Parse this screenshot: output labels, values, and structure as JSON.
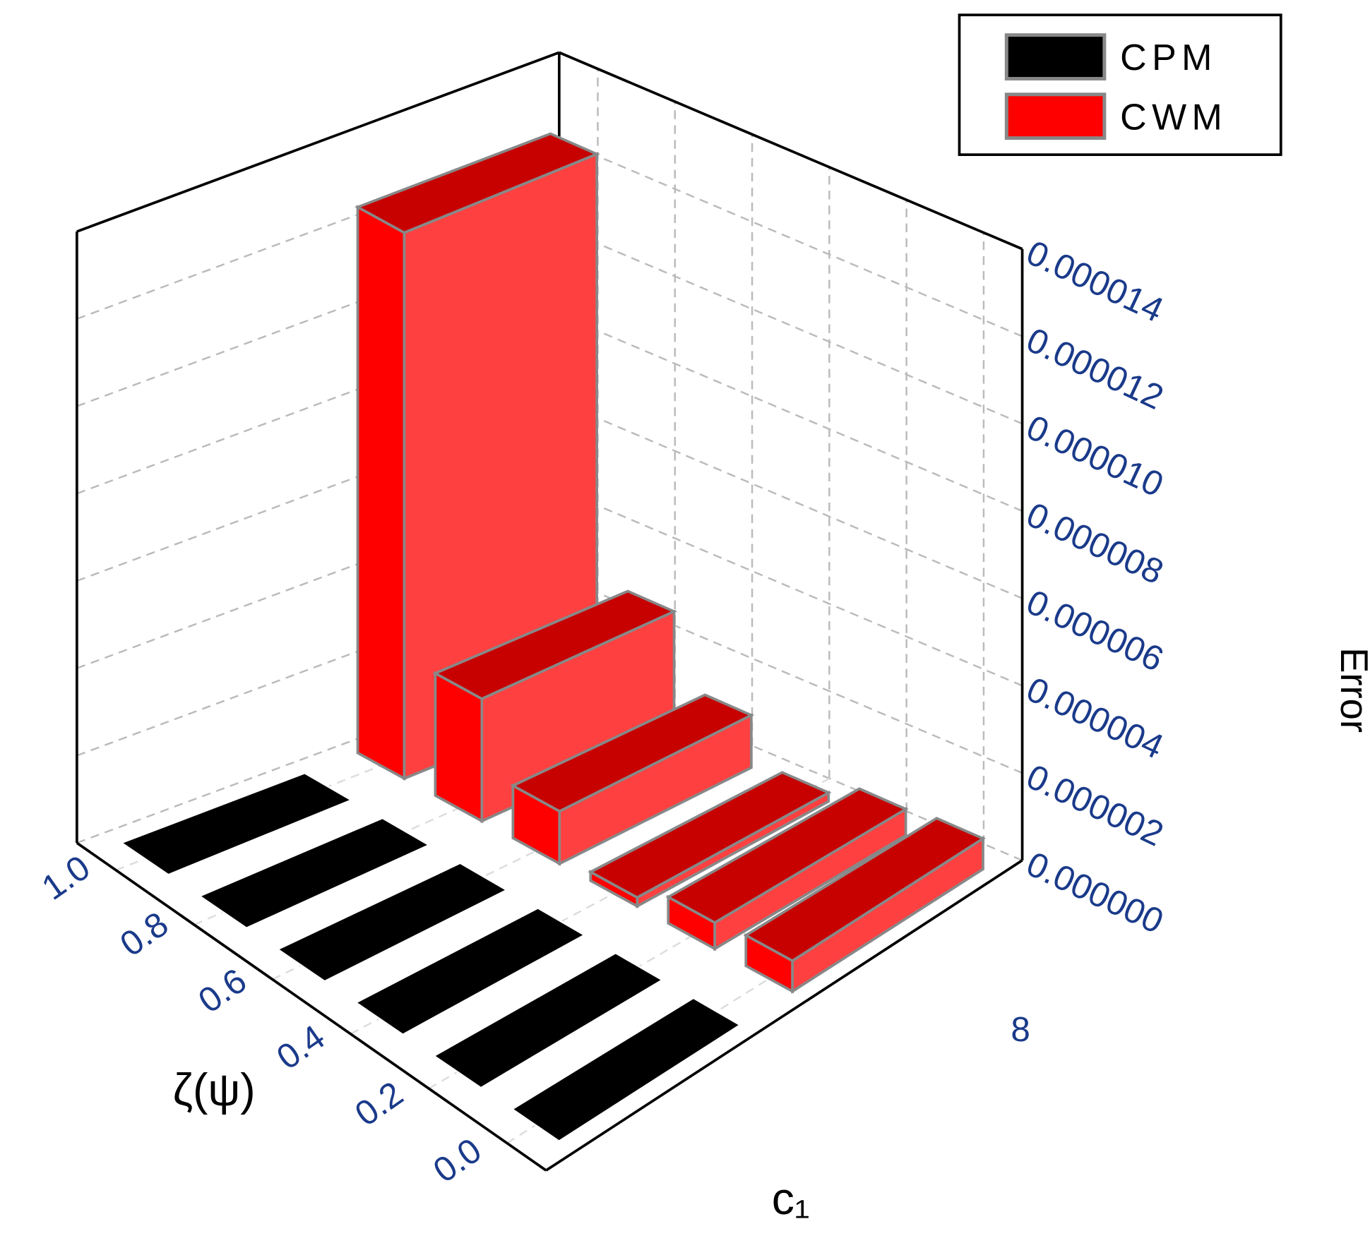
{
  "chart_data": {
    "type": "bar3d",
    "x_label": "ζ(ψ)",
    "series_axis_label": "c₁",
    "annotation": "8",
    "y_label": "Error",
    "categories": [
      "0.0",
      "0.2",
      "0.4",
      "0.6",
      "0.8",
      "1.0"
    ],
    "series": [
      {
        "name": "CPM",
        "color": "#000000",
        "values": [
          0,
          0,
          0,
          0,
          0,
          0
        ]
      },
      {
        "name": "CWM",
        "color": "#ff0000",
        "values": [
          7e-07,
          6e-07,
          2e-07,
          1.2e-06,
          2.8e-06,
          1.25e-05
        ]
      }
    ],
    "ylim": [
      0,
      1.4e-05
    ],
    "yticks": [
      {
        "value": 0,
        "label": "0.000000"
      },
      {
        "value": 2e-06,
        "label": "0.000002"
      },
      {
        "value": 4e-06,
        "label": "0.000004"
      },
      {
        "value": 6e-06,
        "label": "0.000006"
      },
      {
        "value": 8e-06,
        "label": "0.000008"
      },
      {
        "value": 1e-05,
        "label": "0.000010"
      },
      {
        "value": 1.2e-05,
        "label": "0.000012"
      },
      {
        "value": 1.4e-05,
        "label": "0.000014"
      }
    ],
    "grid": true,
    "legend": "upper right"
  }
}
